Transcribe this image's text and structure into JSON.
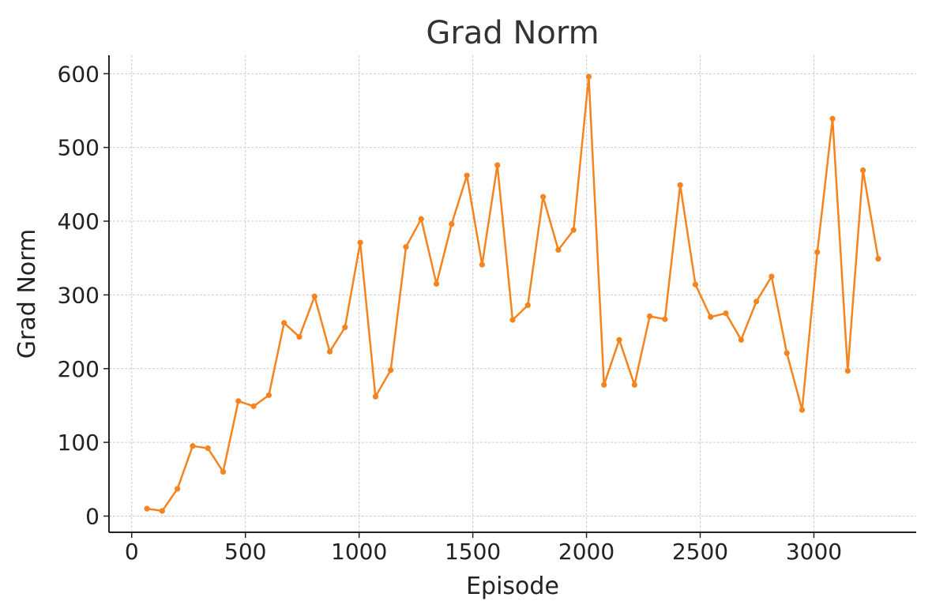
{
  "chart_data": {
    "type": "line",
    "title": "Grad Norm",
    "xlabel": "Episode",
    "ylabel": "Grad Norm",
    "xlim": [
      -100,
      3450
    ],
    "ylim": [
      -22,
      625
    ],
    "xticks": [
      0,
      500,
      1000,
      1500,
      2000,
      2500,
      3000
    ],
    "yticks": [
      0,
      100,
      200,
      300,
      400,
      500,
      600
    ],
    "grid": true,
    "series": [
      {
        "color": "#f5841f",
        "x": [
          67,
          134,
          201,
          268,
          335,
          402,
          469,
          536,
          603,
          670,
          737,
          804,
          871,
          938,
          1005,
          1072,
          1139,
          1206,
          1273,
          1340,
          1407,
          1474,
          1541,
          1608,
          1675,
          1742,
          1809,
          1876,
          1943,
          2010,
          2077,
          2144,
          2211,
          2278,
          2345,
          2412,
          2479,
          2546,
          2613,
          2680,
          2747,
          2814,
          2881,
          2948,
          3015,
          3082,
          3149,
          3216,
          3283
        ],
        "y": [
          10,
          7,
          37,
          95,
          92,
          60,
          156,
          149,
          164,
          262,
          243,
          298,
          223,
          256,
          371,
          162,
          198,
          365,
          403,
          315,
          396,
          462,
          341,
          476,
          266,
          286,
          433,
          361,
          388,
          596,
          178,
          239,
          178,
          271,
          267,
          449,
          314,
          270,
          275,
          239,
          291,
          325,
          221,
          144,
          358,
          539,
          197,
          469,
          349
        ]
      }
    ]
  }
}
